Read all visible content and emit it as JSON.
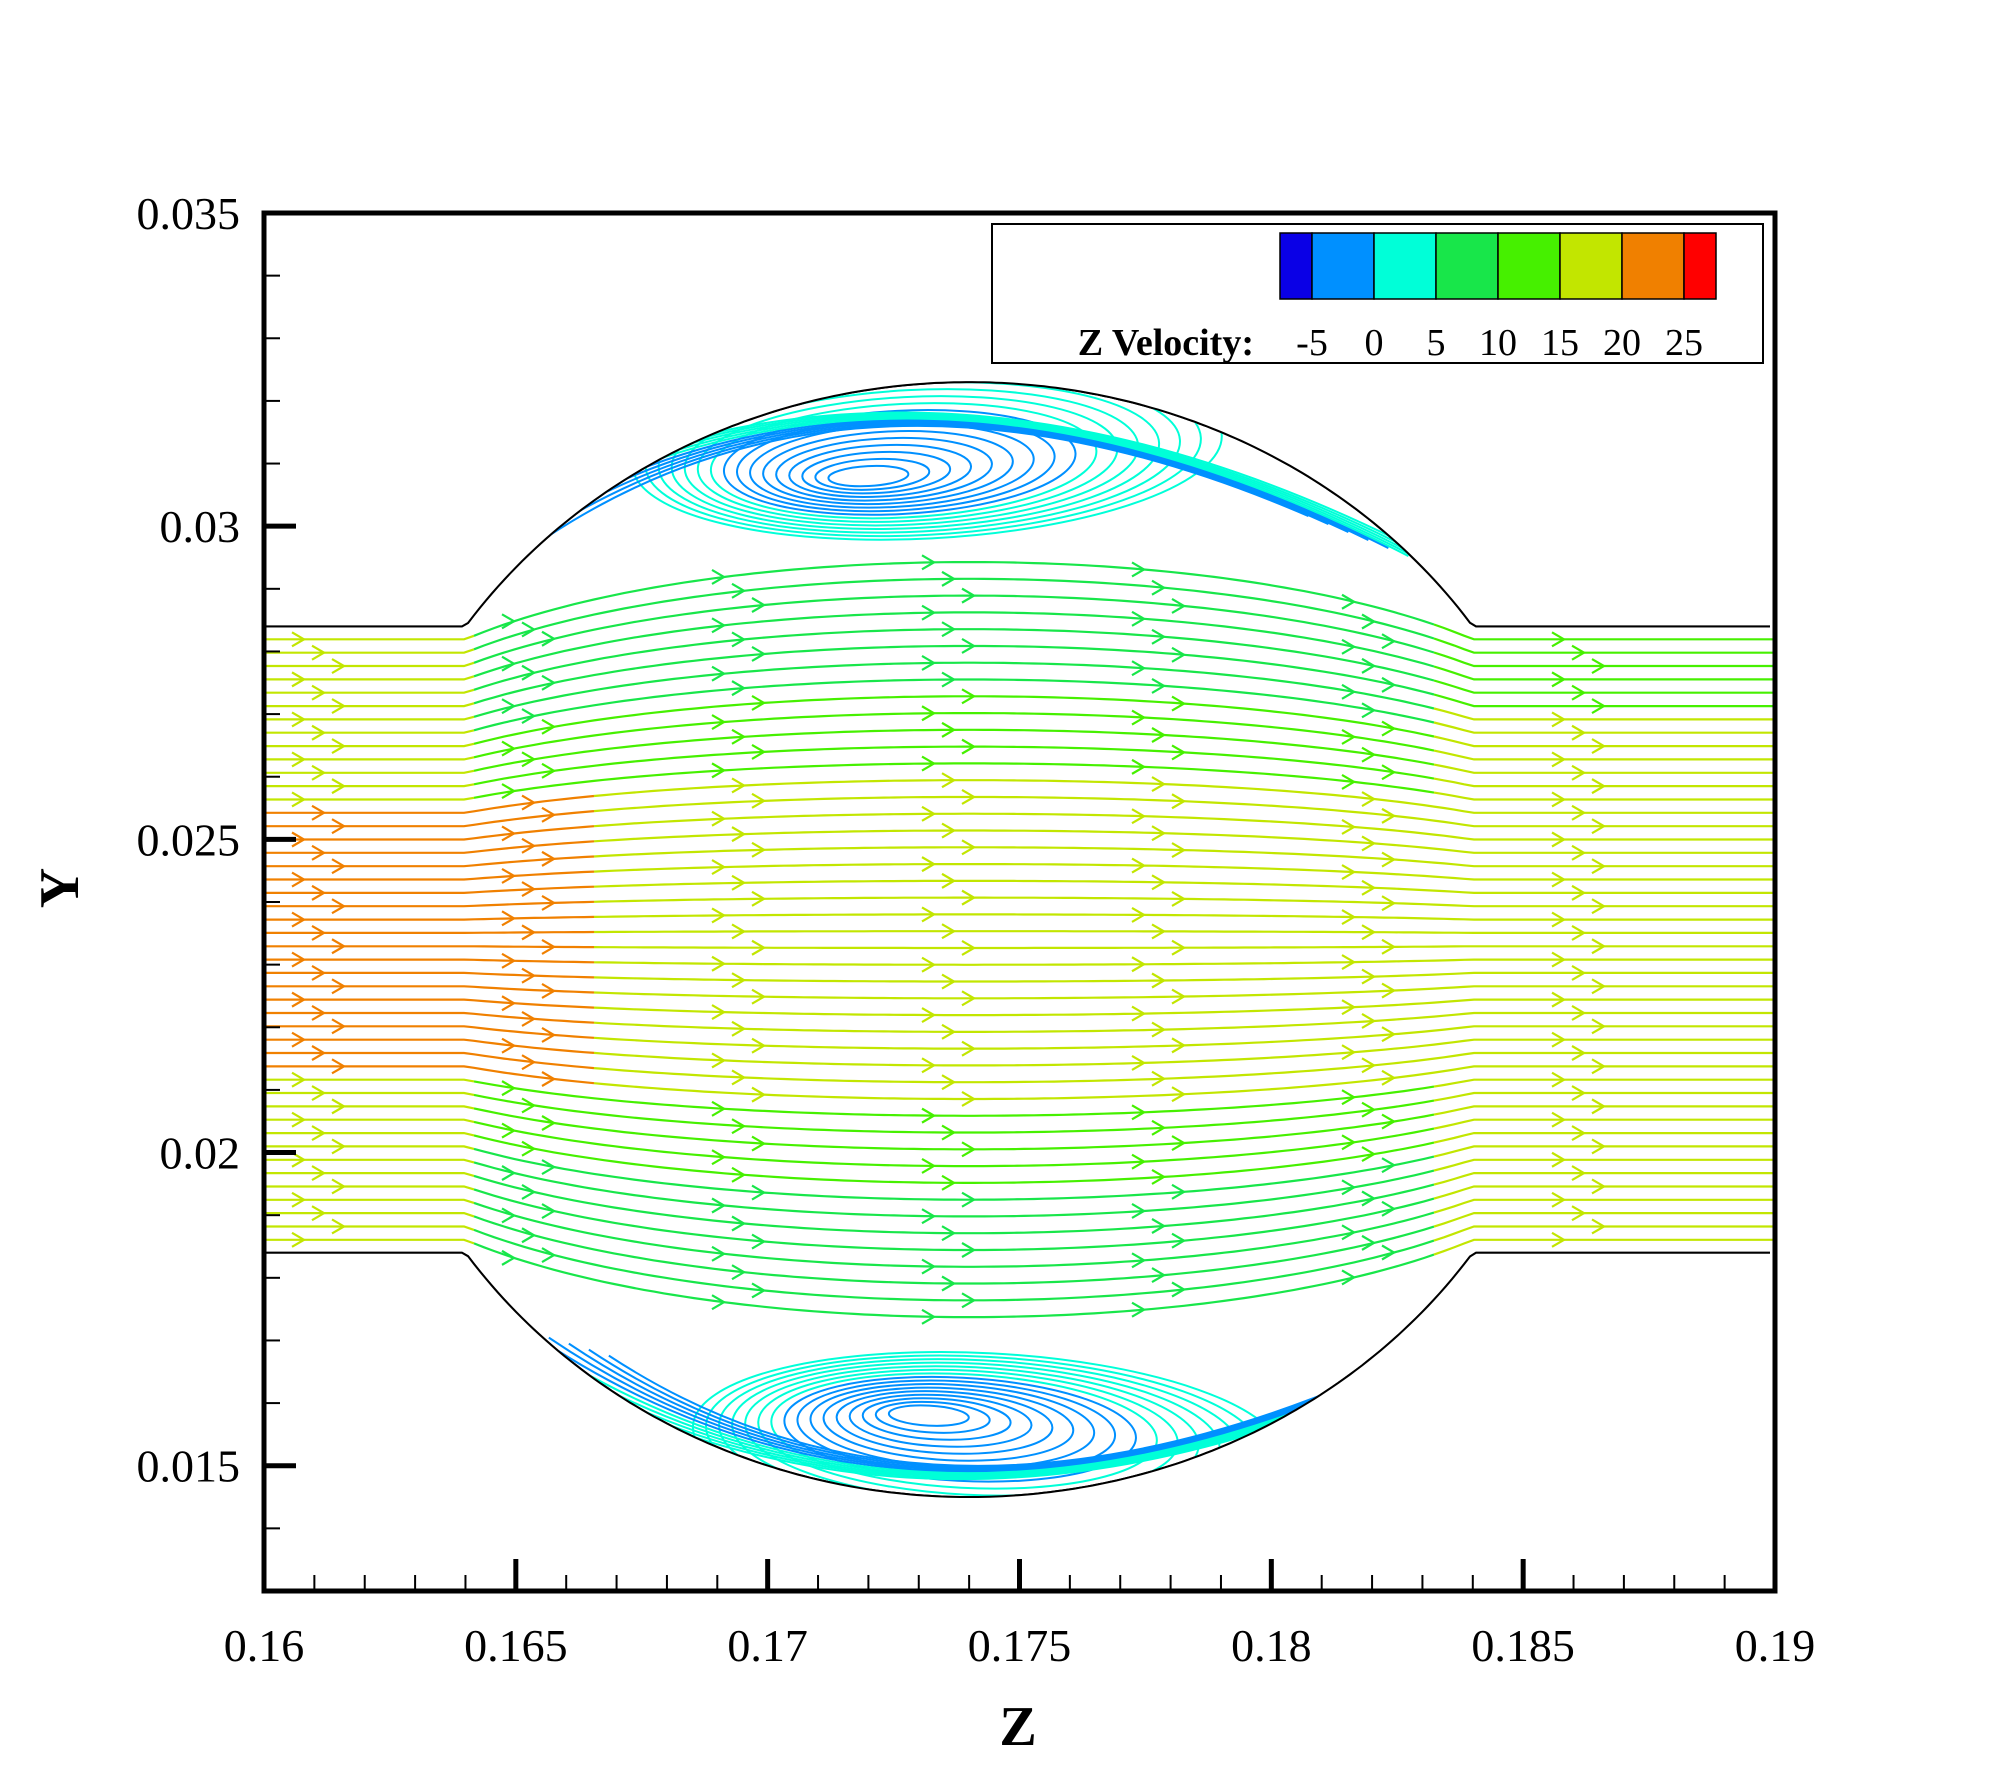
{
  "chart_data": {
    "type": "streamline",
    "xlabel": "Z",
    "ylabel": "Y",
    "xlim": [
      0.16,
      0.19
    ],
    "ylim": [
      0.013,
      0.035
    ],
    "x_ticks": [
      {
        "value": 0.16,
        "label": "0.16"
      },
      {
        "value": 0.165,
        "label": "0.165"
      },
      {
        "value": 0.17,
        "label": "0.17"
      },
      {
        "value": 0.175,
        "label": "0.175"
      },
      {
        "value": 0.18,
        "label": "0.18"
      },
      {
        "value": 0.185,
        "label": "0.185"
      },
      {
        "value": 0.19,
        "label": "0.19"
      }
    ],
    "y_ticks": [
      {
        "value": 0.015,
        "label": "0.015"
      },
      {
        "value": 0.02,
        "label": "0.02"
      },
      {
        "value": 0.025,
        "label": "0.025"
      },
      {
        "value": 0.03,
        "label": "0.03"
      },
      {
        "value": 0.035,
        "label": "0.035"
      }
    ],
    "colorbar": {
      "title": "Z Velocity:",
      "levels": [
        {
          "value": -5,
          "label": "-5"
        },
        {
          "value": 0,
          "label": "0"
        },
        {
          "value": 5,
          "label": "5"
        },
        {
          "value": 10,
          "label": "10"
        },
        {
          "value": 15,
          "label": "15"
        },
        {
          "value": 20,
          "label": "20"
        },
        {
          "value": 25,
          "label": "25"
        }
      ],
      "colors": [
        "#0a00e6",
        "#0090ff",
        "#00ffd8",
        "#18e64a",
        "#46f000",
        "#c2e600",
        "#f08000",
        "#ff0000"
      ],
      "placement": "top-right"
    },
    "geometry": {
      "channel_y": [
        0.0184,
        0.0284
      ],
      "inlet_z_end": 0.164,
      "outlet_z_start": 0.184,
      "bulge_center": [
        0.174,
        0.0234
      ],
      "bulge_top_y": 0.0323,
      "bulge_bottom_y": 0.0145
    },
    "vortices": [
      {
        "center": [
          0.172,
          0.0308
        ],
        "rotation": "counterclockwise"
      },
      {
        "center": [
          0.1732,
          0.0158
        ],
        "rotation": "clockwise"
      }
    ]
  }
}
